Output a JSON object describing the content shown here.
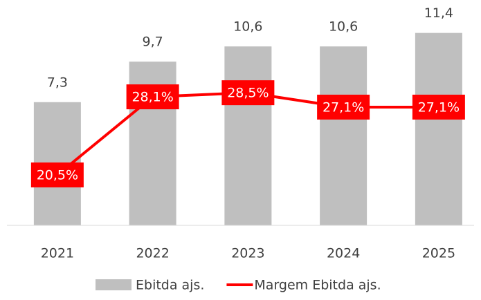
{
  "chart_data": {
    "type": "bar_line",
    "categories": [
      "2021",
      "2022",
      "2023",
      "2024",
      "2025"
    ],
    "series": [
      {
        "name": "Ebitda ajs.",
        "type": "bar",
        "color": "#bfbfbf",
        "values": [
          7.3,
          9.7,
          10.6,
          10.6,
          11.4
        ],
        "value_labels": [
          "7,3",
          "9,7",
          "10,6",
          "10,6",
          "11,4"
        ]
      },
      {
        "name": "Margem Ebitda ajs.",
        "type": "line",
        "axis": "y2",
        "color": "#ff0000",
        "values": [
          20.5,
          28.1,
          28.5,
          27.1,
          27.1
        ],
        "value_labels": [
          "20,5%",
          "28,1%",
          "28,5%",
          "27,1%",
          "27,1%"
        ]
      }
    ],
    "ylim": [
      0,
      12
    ],
    "y2lim": [
      15.6,
      35.3
    ],
    "legend": "bottom"
  }
}
